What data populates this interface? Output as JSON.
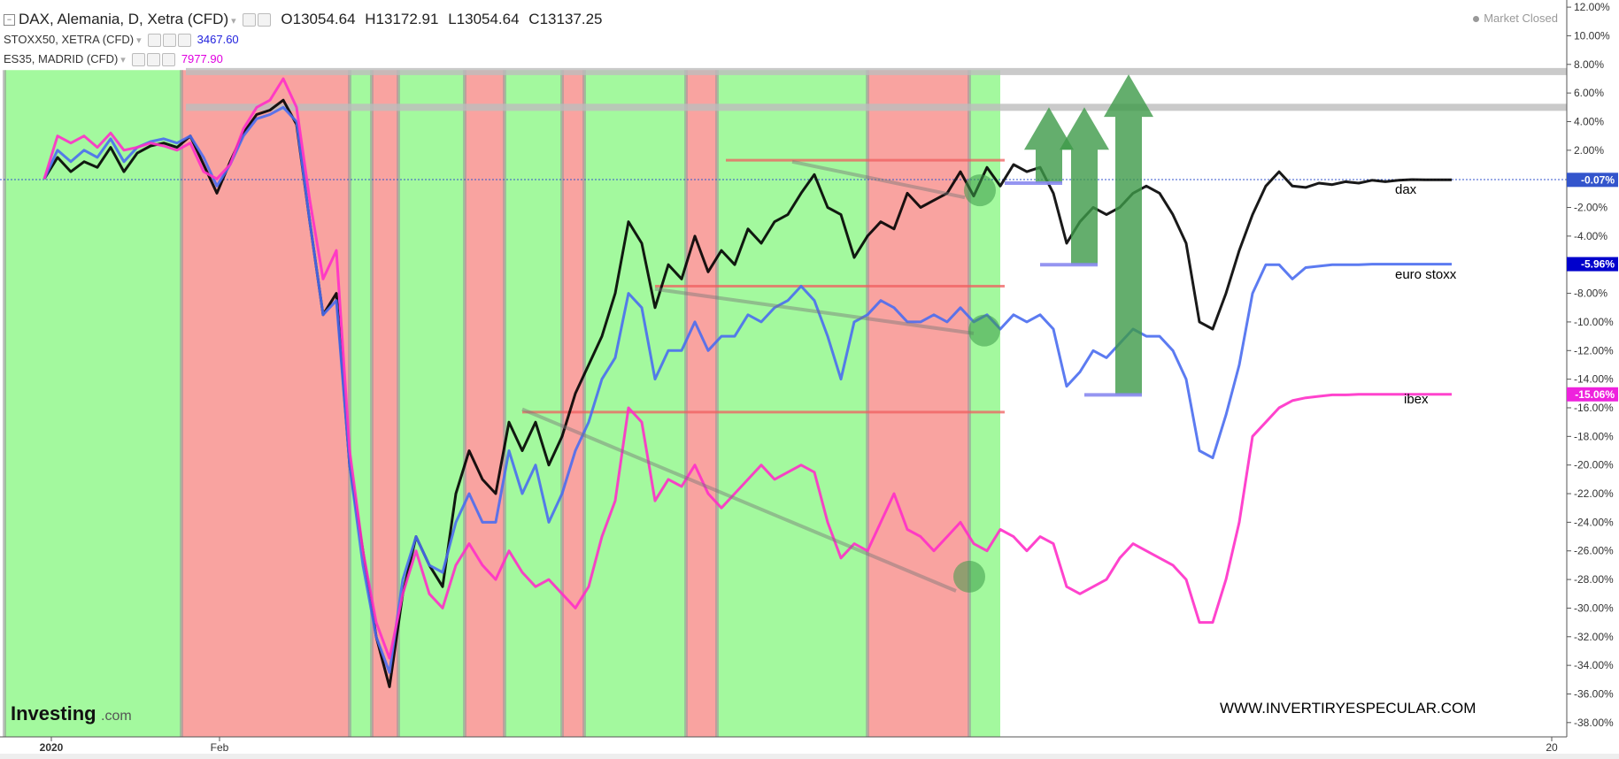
{
  "header": {
    "collapse_icon": "minus-box-icon",
    "main_symbol": "DAX, Alemania, D, Xetra (CFD)",
    "o_label": "O",
    "o_value": "13054.64",
    "h_label": "H",
    "h_value": "13172.91",
    "l_label": "L",
    "l_value": "13054.64",
    "c_label": "C",
    "c_value": "13137.25",
    "compare1_symbol": "STOXX50, XETRA (CFD)",
    "compare1_value": "3467.60",
    "compare2_symbol": "ES35, MADRID (CFD)",
    "compare2_value": "7977.90",
    "settings_icon": "gear-icon",
    "visibility_icon": "eye-icon",
    "remove_icon": "close-icon"
  },
  "status": {
    "market_text": "Market Closed"
  },
  "branding": {
    "logo_text": "Investing",
    "logo_suffix": ".com",
    "watermark": "WWW.INVERTIRYESPECULAR.COM"
  },
  "annotations": {
    "dax_label": "dax",
    "eurostoxx_label": "euro stoxx",
    "ibex_label": "ibex"
  },
  "colors": {
    "green_zone": "#a3f99e",
    "red_zone": "#f9a3a0",
    "dax": "#000000",
    "stoxx": "#4a6df0",
    "ibex": "#ff2fc8",
    "arrow": "#3d9a48",
    "blue_badge": "#0000cc",
    "magenta_badge": "#ee22dd"
  },
  "chart_data": {
    "type": "line",
    "title": "DAX, Alemania, D, Xetra (CFD)",
    "y_axis": {
      "range": [
        -39,
        12.5
      ],
      "ticks": [
        "12.00%",
        "10.00%",
        "8.00%",
        "6.00%",
        "4.00%",
        "2.00%",
        "-2.00%",
        "-4.00%",
        "-6.00%",
        "-8.00%",
        "-10.00%",
        "-12.00%",
        "-14.00%",
        "-16.00%",
        "-18.00%",
        "-20.00%",
        "-22.00%",
        "-24.00%",
        "-26.00%",
        "-28.00%",
        "-30.00%",
        "-32.00%",
        "-34.00%",
        "-36.00%",
        "-38.00%"
      ],
      "tick_values": [
        12,
        10,
        8,
        6,
        4,
        2,
        -2,
        -4,
        -6,
        -8,
        -10,
        -12,
        -14,
        -16,
        -18,
        -20,
        -22,
        -24,
        -26,
        -28,
        -30,
        -32,
        -34,
        -36,
        -38
      ]
    },
    "x_axis": {
      "labels": [
        "2020",
        "Feb",
        "20"
      ],
      "label_positions": [
        0.08,
        1.98,
        17.03
      ],
      "range": [
        -0.5,
        17.2
      ]
    },
    "grid": false,
    "zero_line": 0,
    "series": [
      {
        "name": "dax",
        "color": "#000000",
        "last_label": "-0.07%",
        "x": [
          0,
          0.15,
          0.3,
          0.45,
          0.6,
          0.75,
          0.9,
          1.05,
          1.2,
          1.35,
          1.5,
          1.65,
          1.8,
          1.95,
          2.1,
          2.25,
          2.4,
          2.55,
          2.7,
          2.85,
          3.0,
          3.15,
          3.3,
          3.45,
          3.6,
          3.75,
          3.9,
          4.05,
          4.2,
          4.35,
          4.5,
          4.65,
          4.8,
          4.95,
          5.1,
          5.25,
          5.4,
          5.55,
          5.7,
          5.85,
          6.0,
          6.15,
          6.3,
          6.45,
          6.6,
          6.75,
          6.9,
          7.05,
          7.2,
          7.35,
          7.5,
          7.65,
          7.8,
          7.95,
          8.1,
          8.25,
          8.4,
          8.55,
          8.7,
          8.85,
          9.0,
          9.15,
          9.3,
          9.45,
          9.6,
          9.75,
          9.9,
          10.05,
          10.2,
          10.35,
          10.5,
          10.65,
          10.8,
          10.95,
          11.1,
          11.25,
          11.4,
          11.55,
          11.7,
          11.85,
          12.0,
          12.15,
          12.3,
          12.45,
          12.6,
          12.75,
          12.9,
          13.05,
          13.2,
          13.35,
          13.5,
          13.65,
          13.8,
          13.95,
          14.1,
          14.25,
          14.4,
          14.55,
          14.7,
          14.85,
          15.0,
          15.15,
          15.3,
          15.45,
          15.6,
          15.75,
          15.9
        ],
        "y": [
          0,
          1.5,
          0.5,
          1.2,
          0.8,
          2.2,
          0.5,
          1.8,
          2.3,
          2.5,
          2.2,
          3.0,
          1.0,
          -1.0,
          1.2,
          3.2,
          4.5,
          4.8,
          5.5,
          3.8,
          -3.0,
          -9.5,
          -8.0,
          -20.0,
          -26.0,
          -32.0,
          -35.5,
          -29.0,
          -25.0,
          -27.0,
          -28.5,
          -22.0,
          -19.0,
          -21.0,
          -22.0,
          -17.0,
          -19.0,
          -17.0,
          -20.0,
          -18.0,
          -15.0,
          -13.0,
          -11.0,
          -8.0,
          -3.0,
          -4.5,
          -9.0,
          -6.0,
          -7.0,
          -4.0,
          -6.5,
          -5.0,
          -6.0,
          -3.5,
          -4.5,
          -3.0,
          -2.5,
          -1.0,
          0.3,
          -2.0,
          -2.5,
          -5.5,
          -4.0,
          -3.0,
          -3.5,
          -1.0,
          -2.0,
          -1.5,
          -1.0,
          0.5,
          -1.2,
          0.8,
          -0.5,
          1.0,
          0.5,
          0.8,
          -1.0,
          -4.5,
          -3.0,
          -2.0,
          -2.5,
          -2.0,
          -1.0,
          -0.5,
          -1.0,
          -2.5,
          -4.5,
          -10.0,
          -10.5,
          -8.0,
          -5.0,
          -2.5,
          -0.5,
          0.5,
          -0.5,
          -0.6,
          -0.3,
          -0.4,
          -0.2,
          -0.3,
          -0.1,
          -0.2,
          -0.1,
          -0.05,
          -0.07,
          -0.07,
          -0.07
        ]
      },
      {
        "name": "euro stoxx",
        "color": "#4a6df0",
        "last_label": "-5.96%",
        "x": [
          0,
          0.15,
          0.3,
          0.45,
          0.6,
          0.75,
          0.9,
          1.05,
          1.2,
          1.35,
          1.5,
          1.65,
          1.8,
          1.95,
          2.1,
          2.25,
          2.4,
          2.55,
          2.7,
          2.85,
          3.0,
          3.15,
          3.3,
          3.45,
          3.6,
          3.75,
          3.9,
          4.05,
          4.2,
          4.35,
          4.5,
          4.65,
          4.8,
          4.95,
          5.1,
          5.25,
          5.4,
          5.55,
          5.7,
          5.85,
          6.0,
          6.15,
          6.3,
          6.45,
          6.6,
          6.75,
          6.9,
          7.05,
          7.2,
          7.35,
          7.5,
          7.65,
          7.8,
          7.95,
          8.1,
          8.25,
          8.4,
          8.55,
          8.7,
          8.85,
          9.0,
          9.15,
          9.3,
          9.45,
          9.6,
          9.75,
          9.9,
          10.05,
          10.2,
          10.35,
          10.5,
          10.65,
          10.8,
          10.95,
          11.1,
          11.25,
          11.4,
          11.55,
          11.7,
          11.85,
          12.0,
          12.15,
          12.3,
          12.45,
          12.6,
          12.75,
          12.9,
          13.05,
          13.2,
          13.35,
          13.5,
          13.65,
          13.8,
          13.95,
          14.1,
          14.25,
          14.4,
          14.55,
          14.7,
          14.85,
          15.0,
          15.15,
          15.3,
          15.45,
          15.6,
          15.75,
          15.9
        ],
        "y": [
          0,
          2.0,
          1.2,
          2.0,
          1.5,
          2.8,
          1.2,
          2.2,
          2.6,
          2.8,
          2.5,
          3.0,
          1.5,
          -0.5,
          1.0,
          3.0,
          4.2,
          4.5,
          5.0,
          4.0,
          -3.0,
          -9.5,
          -8.5,
          -20.0,
          -27.0,
          -32.0,
          -34.5,
          -28.0,
          -25.0,
          -27.0,
          -27.5,
          -24.0,
          -22.0,
          -24.0,
          -24.0,
          -19.0,
          -22.0,
          -20.0,
          -24.0,
          -22.0,
          -19.0,
          -17.0,
          -14.0,
          -12.5,
          -8.0,
          -9.0,
          -14.0,
          -12.0,
          -12.0,
          -10.0,
          -12.0,
          -11.0,
          -11.0,
          -9.5,
          -10.0,
          -9.0,
          -8.5,
          -7.5,
          -8.5,
          -11.0,
          -14.0,
          -10.0,
          -9.5,
          -8.5,
          -9.0,
          -10.0,
          -10.0,
          -9.5,
          -10.0,
          -9.0,
          -10.0,
          -9.5,
          -10.5,
          -9.5,
          -10.0,
          -9.5,
          -10.5,
          -14.5,
          -13.5,
          -12.0,
          -12.5,
          -11.5,
          -10.5,
          -11.0,
          -11.0,
          -12.0,
          -14.0,
          -19.0,
          -19.5,
          -16.5,
          -13.0,
          -8.0,
          -6.0,
          -6.0,
          -7.0,
          -6.2,
          -6.1,
          -6.0,
          -6.0,
          -6.0,
          -5.96,
          -5.96,
          -5.96,
          -5.96,
          -5.96,
          -5.96,
          -5.96
        ]
      },
      {
        "name": "ibex",
        "color": "#ff2fc8",
        "last_label": "-15.06%",
        "x": [
          0,
          0.15,
          0.3,
          0.45,
          0.6,
          0.75,
          0.9,
          1.05,
          1.2,
          1.35,
          1.5,
          1.65,
          1.8,
          1.95,
          2.1,
          2.25,
          2.4,
          2.55,
          2.7,
          2.85,
          3.0,
          3.15,
          3.3,
          3.45,
          3.6,
          3.75,
          3.9,
          4.05,
          4.2,
          4.35,
          4.5,
          4.65,
          4.8,
          4.95,
          5.1,
          5.25,
          5.4,
          5.55,
          5.7,
          5.85,
          6.0,
          6.15,
          6.3,
          6.45,
          6.6,
          6.75,
          6.9,
          7.05,
          7.2,
          7.35,
          7.5,
          7.65,
          7.8,
          7.95,
          8.1,
          8.25,
          8.4,
          8.55,
          8.7,
          8.85,
          9.0,
          9.15,
          9.3,
          9.45,
          9.6,
          9.75,
          9.9,
          10.05,
          10.2,
          10.35,
          10.5,
          10.65,
          10.8,
          10.95,
          11.1,
          11.25,
          11.4,
          11.55,
          11.7,
          11.85,
          12.0,
          12.15,
          12.3,
          12.45,
          12.6,
          12.75,
          12.9,
          13.05,
          13.2,
          13.35,
          13.5,
          13.65,
          13.8,
          13.95,
          14.1,
          14.25,
          14.4,
          14.55,
          14.7,
          14.85,
          15.0,
          15.15,
          15.3,
          15.45,
          15.6,
          15.75,
          15.9
        ],
        "y": [
          0,
          3.0,
          2.5,
          3.0,
          2.2,
          3.2,
          2.0,
          2.2,
          2.5,
          2.3,
          2.0,
          2.5,
          0.5,
          0.0,
          1.0,
          3.5,
          5.0,
          5.5,
          7.0,
          5.0,
          -1.5,
          -7.0,
          -5.0,
          -19.0,
          -26.0,
          -31.0,
          -33.5,
          -29.0,
          -26.0,
          -29.0,
          -30.0,
          -27.0,
          -25.5,
          -27.0,
          -28.0,
          -26.0,
          -27.5,
          -28.5,
          -28.0,
          -29.0,
          -30.0,
          -28.5,
          -25.0,
          -22.5,
          -16.0,
          -17.0,
          -22.5,
          -21.0,
          -21.5,
          -20.0,
          -22.0,
          -23.0,
          -22.0,
          -21.0,
          -20.0,
          -21.0,
          -20.5,
          -20.0,
          -20.5,
          -24.0,
          -26.5,
          -25.5,
          -26.0,
          -24.0,
          -22.0,
          -24.5,
          -25.0,
          -26.0,
          -25.0,
          -24.0,
          -25.5,
          -26.0,
          -24.5,
          -25.0,
          -26.0,
          -25.0,
          -25.5,
          -28.5,
          -29.0,
          -28.5,
          -28.0,
          -26.5,
          -25.5,
          -26.0,
          -26.5,
          -27.0,
          -28.0,
          -31.0,
          -31.0,
          -28.0,
          -24.0,
          -18.0,
          -17.0,
          -16.0,
          -15.5,
          -15.3,
          -15.2,
          -15.1,
          -15.1,
          -15.06,
          -15.06,
          -15.06,
          -15.06,
          -15.06,
          -15.06,
          -15.06,
          -15.06
        ]
      }
    ],
    "zones": [
      {
        "kind": "green",
        "x0": -0.45,
        "x1": 1.55
      },
      {
        "kind": "red",
        "x0": 1.55,
        "x1": 3.45
      },
      {
        "kind": "green",
        "x0": 3.45,
        "x1": 3.7
      },
      {
        "kind": "red",
        "x0": 3.7,
        "x1": 4.0
      },
      {
        "kind": "green",
        "x0": 4.0,
        "x1": 4.75
      },
      {
        "kind": "red",
        "x0": 4.75,
        "x1": 5.2
      },
      {
        "kind": "green",
        "x0": 5.2,
        "x1": 5.85
      },
      {
        "kind": "red",
        "x0": 5.85,
        "x1": 6.1
      },
      {
        "kind": "green",
        "x0": 6.1,
        "x1": 7.25
      },
      {
        "kind": "red",
        "x0": 7.25,
        "x1": 7.6
      },
      {
        "kind": "green",
        "x0": 7.6,
        "x1": 9.3
      },
      {
        "kind": "red",
        "x0": 9.3,
        "x1": 10.45
      },
      {
        "kind": "green",
        "x0": 10.45,
        "x1": 10.8
      }
    ],
    "support_lines": [
      {
        "color": "#f06060",
        "x0": 7.7,
        "x1": 10.85,
        "y": 1.3
      },
      {
        "color": "#f06060",
        "x0": 6.9,
        "x1": 10.85,
        "y": -7.5
      },
      {
        "color": "#f06060",
        "x0": 5.4,
        "x1": 10.85,
        "y": -16.3
      }
    ],
    "trend_lines": [
      {
        "x0": 8.45,
        "y0": 1.2,
        "x1": 10.4,
        "y1": -1.3
      },
      {
        "x0": 6.9,
        "y0": -7.7,
        "x1": 10.5,
        "y1": -10.8
      },
      {
        "x0": 5.4,
        "y0": -16.1,
        "x1": 10.3,
        "y1": -28.8
      }
    ],
    "resistance_bands": [
      {
        "y": 7.5
      },
      {
        "y": 5.0
      }
    ],
    "arrows": [
      {
        "x": 11.35,
        "base": -0.3,
        "top": 5.0
      },
      {
        "x": 11.75,
        "base": -6.0,
        "top": 5.0
      },
      {
        "x": 12.25,
        "base": -15.1,
        "top": 7.3
      }
    ]
  }
}
